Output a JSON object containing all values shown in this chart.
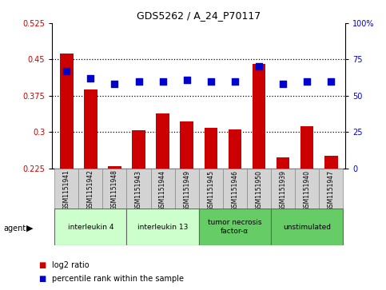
{
  "title": "GDS5262 / A_24_P70117",
  "samples": [
    "GSM1151941",
    "GSM1151942",
    "GSM1151948",
    "GSM1151943",
    "GSM1151944",
    "GSM1151949",
    "GSM1151945",
    "GSM1151946",
    "GSM1151950",
    "GSM1151939",
    "GSM1151940",
    "GSM1151947"
  ],
  "log2_ratio": [
    0.463,
    0.388,
    0.229,
    0.303,
    0.338,
    0.322,
    0.308,
    0.305,
    0.44,
    0.248,
    0.312,
    0.25
  ],
  "percentile_pct": [
    67,
    62,
    58,
    60,
    60,
    61,
    60,
    60,
    70,
    58,
    60,
    60
  ],
  "bar_color": "#cc0000",
  "dot_color": "#0000cc",
  "ylim_left": [
    0.225,
    0.525
  ],
  "ylim_right": [
    0,
    100
  ],
  "yticks_left": [
    0.225,
    0.3,
    0.375,
    0.45,
    0.525
  ],
  "yticks_right": [
    0,
    25,
    50,
    75,
    100
  ],
  "hlines": [
    0.3,
    0.375,
    0.45
  ],
  "groups": [
    {
      "label": "interleukin 4",
      "indices": [
        0,
        1,
        2
      ],
      "color": "#ccffcc"
    },
    {
      "label": "interleukin 13",
      "indices": [
        3,
        4,
        5
      ],
      "color": "#ccffcc"
    },
    {
      "label": "tumor necrosis\nfactor-α",
      "indices": [
        6,
        7,
        8
      ],
      "color": "#66cc66"
    },
    {
      "label": "unstimulated",
      "indices": [
        9,
        10,
        11
      ],
      "color": "#66cc66"
    }
  ],
  "legend_red": "log2 ratio",
  "legend_blue": "percentile rank within the sample",
  "bar_width": 0.55,
  "dot_size": 28,
  "bg_color": "#d3d3d3",
  "group_light": "#ccffcc",
  "group_dark": "#66cc66"
}
